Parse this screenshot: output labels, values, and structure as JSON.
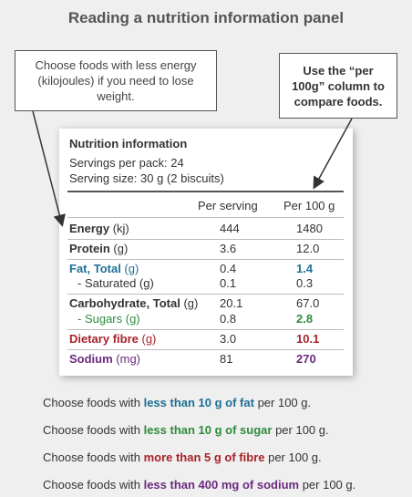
{
  "title": "Reading a nutrition information panel",
  "callouts": {
    "left": "Choose foods with less energy (kilojoules) if you need to lose weight.",
    "right": "Use the “per 100g” column to compare foods."
  },
  "panel": {
    "title": "Nutrition information",
    "servings_per_pack": "Servings per pack: 24",
    "serving_size": "Serving size: 30 g (2 biscuits)",
    "col_serving": "Per serving",
    "col_100g": "Per 100 g",
    "rows": [
      {
        "name": "Energy",
        "unit": " (kj)",
        "serving": "444",
        "per100": "1480"
      },
      {
        "name": "Protein",
        "unit": " (g)",
        "serving": "3.6",
        "per100": "12.0"
      },
      {
        "name": "Fat, Total",
        "unit": " (g)",
        "serving": "0.4",
        "per100": "1.4"
      },
      {
        "name": "- Saturated (g)",
        "unit": "",
        "serving": "0.1",
        "per100": "0.3"
      },
      {
        "name": "Carbohydrate, Total",
        "unit": " (g)",
        "serving": "20.1",
        "per100": "67.0"
      },
      {
        "name": "- Sugars (g)",
        "unit": "",
        "serving": "0.8",
        "per100": "2.8"
      },
      {
        "name": "Dietary fibre",
        "unit": " (g)",
        "serving": "3.0",
        "per100": "10.1"
      },
      {
        "name": "Sodium",
        "unit": " (mg)",
        "serving": "81",
        "per100": "270"
      }
    ]
  },
  "tips": [
    {
      "pre": "Choose foods with ",
      "hl": "less than 10 g of fat",
      "post": " per 100 g."
    },
    {
      "pre": "Choose foods with ",
      "hl": "less than 10 g of sugar",
      "post": " per 100 g."
    },
    {
      "pre": "Choose foods with ",
      "hl": "more than 5 g of fibre",
      "post": " per 100 g."
    },
    {
      "pre": "Choose foods with ",
      "hl": "less than 400 mg of sodium",
      "post": " per 100 g."
    }
  ],
  "colors": {
    "fat": "#1f6e96",
    "sugar": "#2e8b3c",
    "fibre": "#a8232a",
    "sodium": "#6b2b7e"
  }
}
